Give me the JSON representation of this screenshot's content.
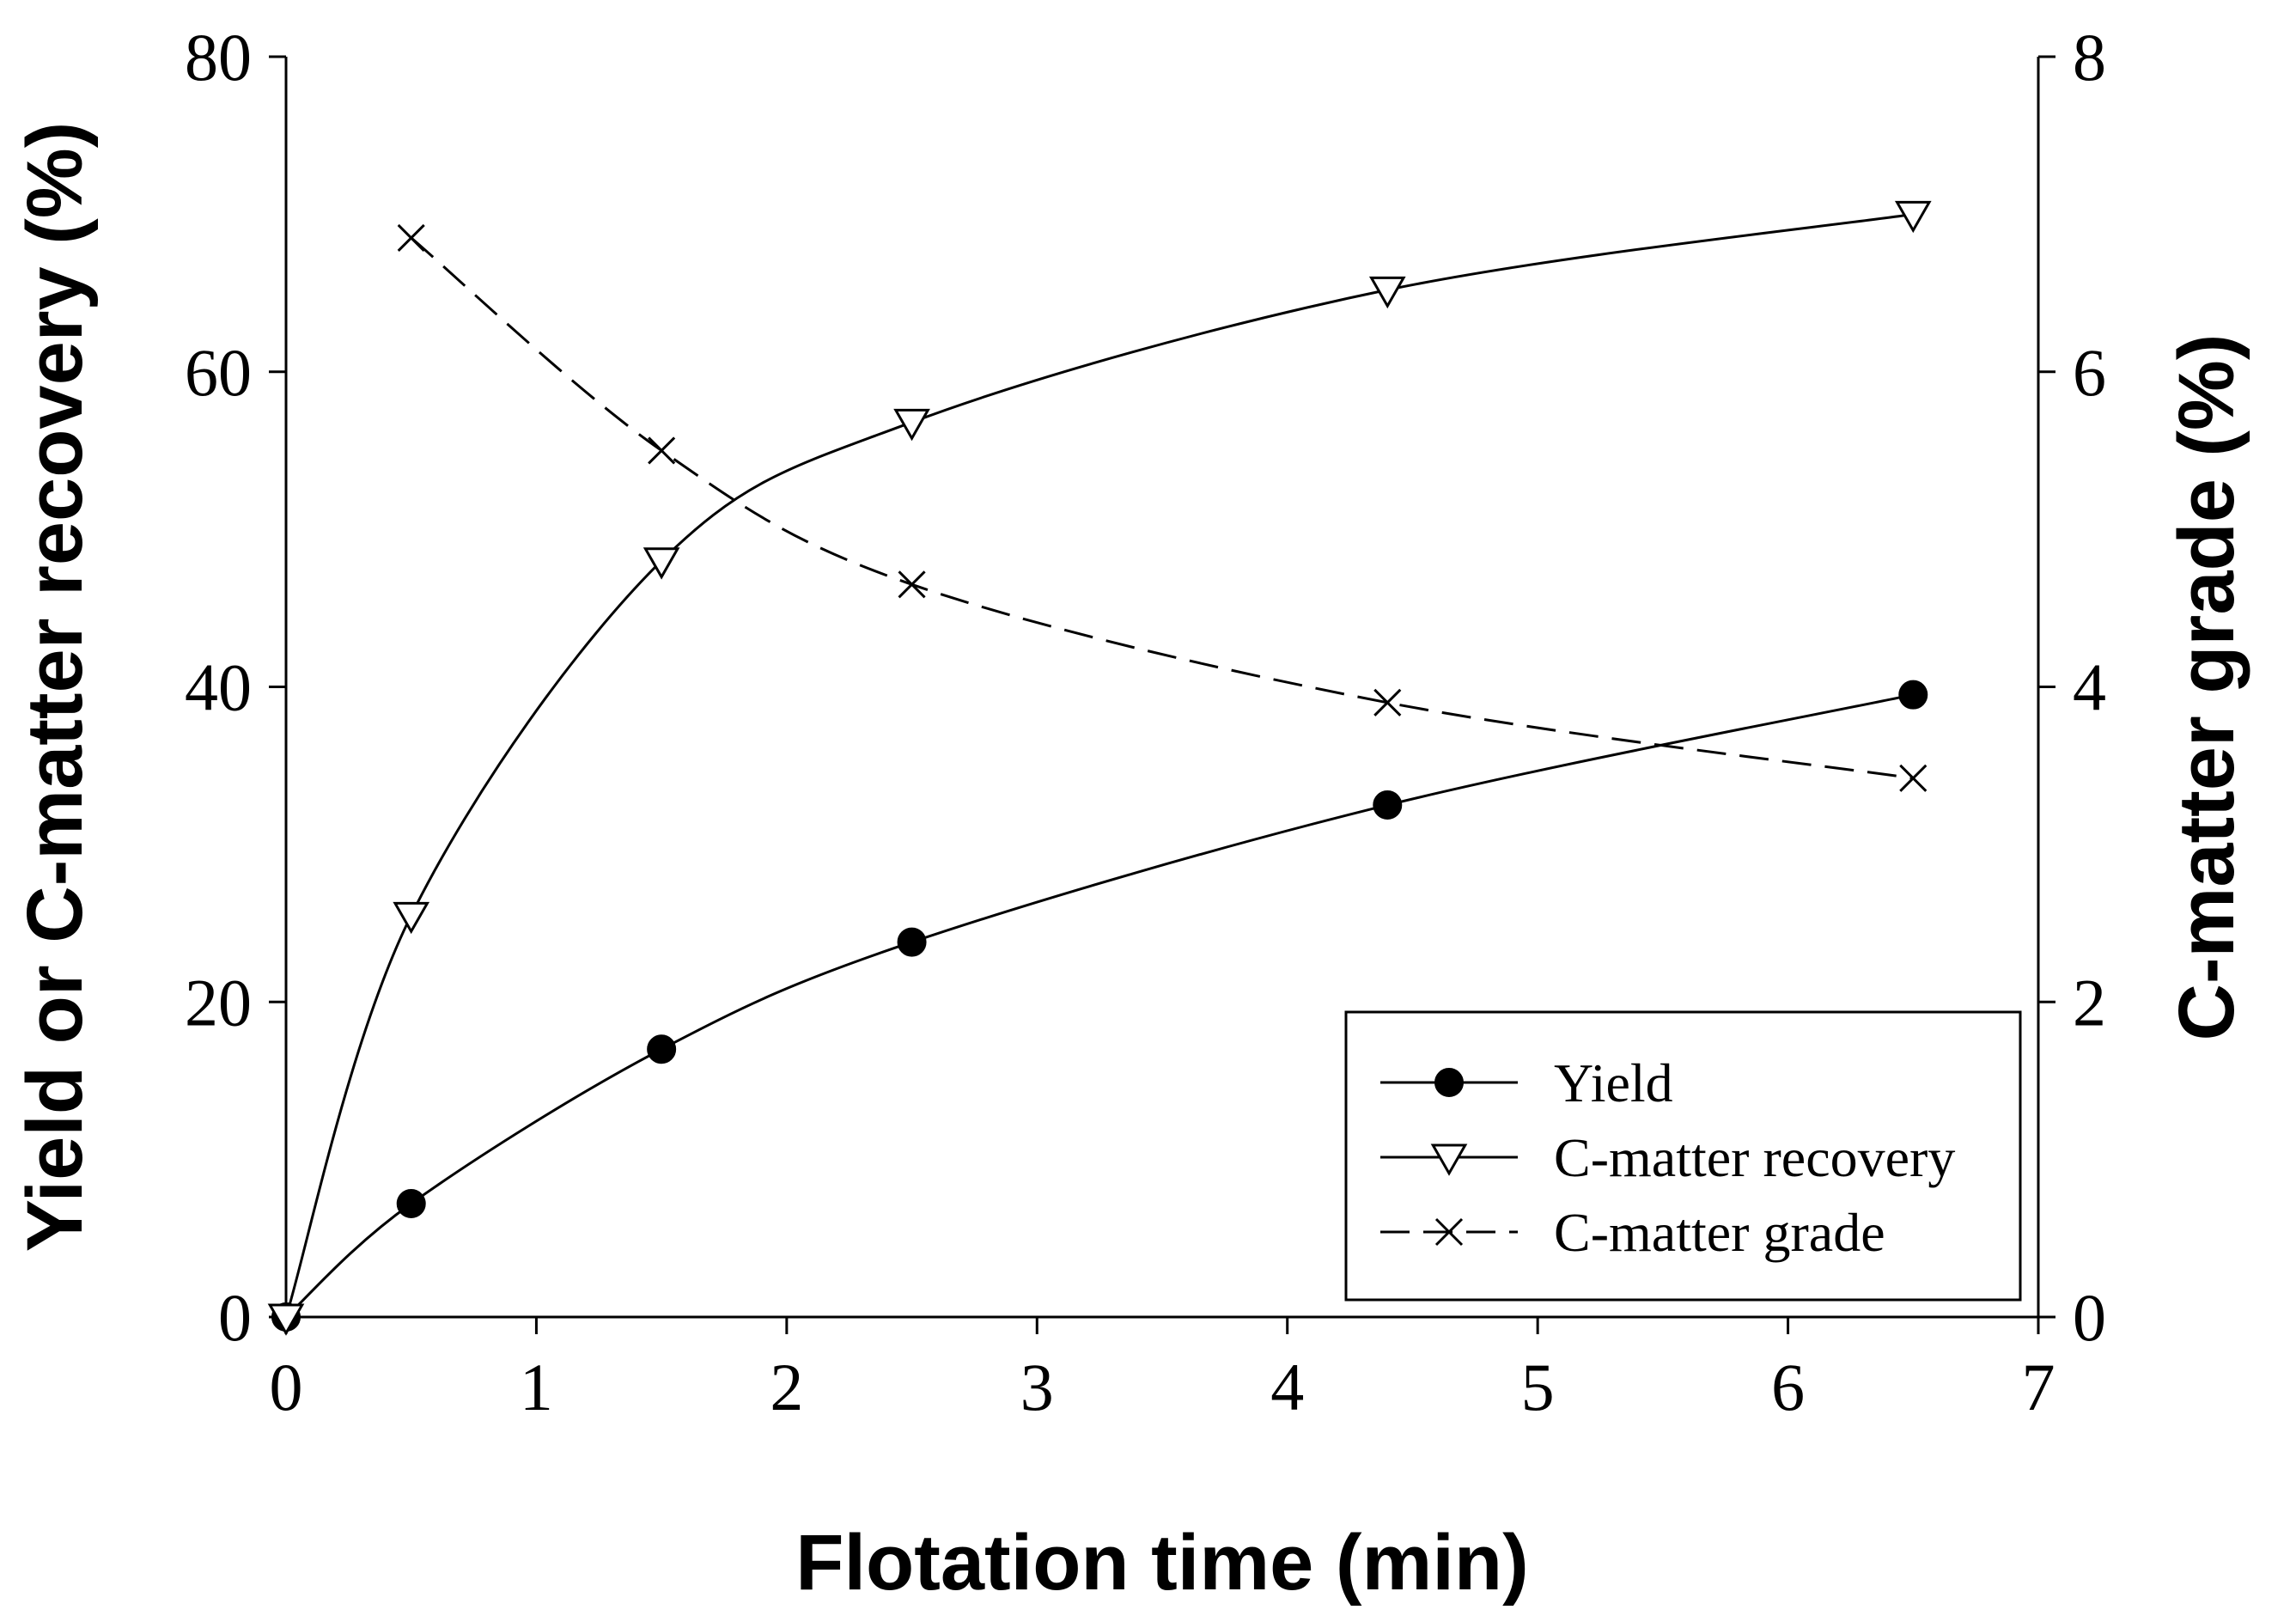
{
  "chart_data": {
    "type": "line",
    "xlabel": "Flotation time (min)",
    "ylabel_left": "Yield or C-matter recovery (%)",
    "ylabel_right": "C-matter grade (%)",
    "xlim": [
      0,
      7
    ],
    "ylim_left": [
      0,
      80
    ],
    "ylim_right": [
      0,
      8
    ],
    "x_ticks": [
      "0",
      "1",
      "2",
      "3",
      "4",
      "5",
      "6",
      "7"
    ],
    "y_left_ticks": [
      "0",
      "20",
      "40",
      "60",
      "80"
    ],
    "y_right_ticks": [
      "0",
      "2",
      "4",
      "6",
      "8"
    ],
    "grid": false,
    "legend_position": "bottom-right",
    "series": [
      {
        "name": "Yield",
        "axis": "left",
        "marker": "filled-circle",
        "line_style": "solid",
        "x": [
          0,
          0.5,
          1.5,
          2.5,
          4.4,
          6.5
        ],
        "y": [
          0,
          7.2,
          17.0,
          23.8,
          32.5,
          39.5
        ]
      },
      {
        "name": "C-matter recovery",
        "axis": "left",
        "marker": "open-down-triangle",
        "line_style": "solid",
        "x": [
          0,
          0.5,
          1.5,
          2.5,
          4.4,
          6.5
        ],
        "y": [
          0,
          25.5,
          48.0,
          56.8,
          65.2,
          70.0
        ]
      },
      {
        "name": "C-matter grade",
        "axis": "right",
        "marker": "x",
        "line_style": "dashed",
        "x": [
          0.5,
          1.5,
          2.5,
          4.4,
          6.5
        ],
        "y": [
          6.85,
          5.5,
          4.65,
          3.9,
          3.42
        ]
      }
    ]
  }
}
